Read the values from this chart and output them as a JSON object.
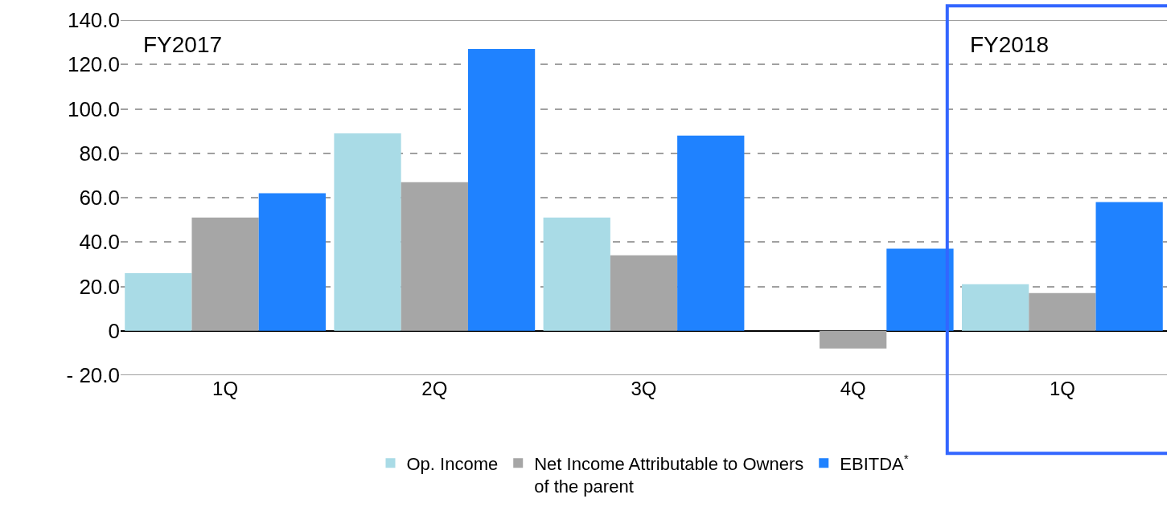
{
  "chart_data": {
    "type": "bar",
    "categories": [
      "1Q",
      "2Q",
      "3Q",
      "4Q",
      "1Q"
    ],
    "series": [
      {
        "name": "Op. Income",
        "color": "#a9dbe6",
        "values": [
          26,
          89,
          51,
          0,
          21
        ]
      },
      {
        "name": "Net Income Attributable to Owners\nof the parent",
        "color": "#a6a6a6",
        "values": [
          51,
          67,
          34,
          -8,
          17
        ]
      },
      {
        "name": "EBITDA$^{*}$",
        "color": "#1f82ff",
        "values": [
          62,
          127,
          88,
          37,
          58
        ]
      }
    ],
    "ylim": [
      -20,
      140
    ],
    "yticks": [
      {
        "value": -20,
        "label": "- 20.0"
      },
      0,
      {
        "value": 20,
        "label": "20.0"
      },
      {
        "value": 40,
        "label": "40.0"
      },
      {
        "value": 60,
        "label": "60.0"
      },
      {
        "value": 80,
        "label": "80.0"
      },
      {
        "value": 100,
        "label": "100.0"
      },
      {
        "value": 120,
        "label": "120.0"
      },
      {
        "value": 140,
        "label": "140.0"
      }
    ],
    "grid": "y",
    "legend": "bottom",
    "annotations": [
      "FY2017",
      "FY2018"
    ]
  }
}
